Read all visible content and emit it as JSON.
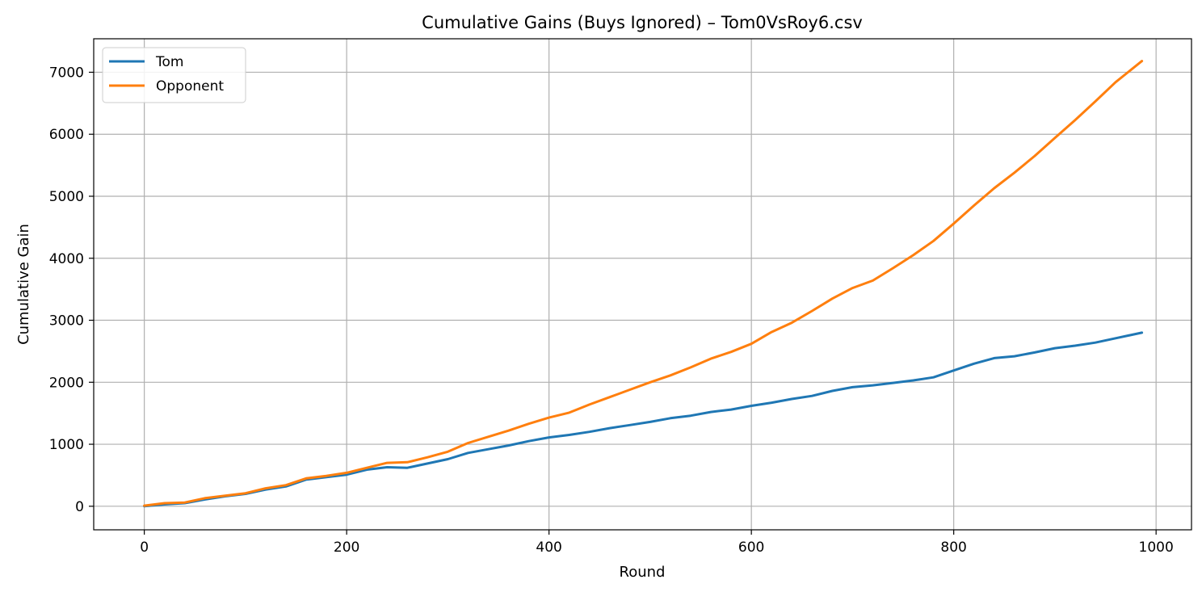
{
  "chart_data": {
    "type": "line",
    "title": "Cumulative Gains (Buys Ignored) – Tom0VsRoy6.csv",
    "xlabel": "Round",
    "ylabel": "Cumulative Gain",
    "xlim": [
      -50,
      1035
    ],
    "ylim": [
      -380,
      7540
    ],
    "xticks": [
      0,
      200,
      400,
      600,
      800,
      1000
    ],
    "yticks": [
      0,
      1000,
      2000,
      3000,
      4000,
      5000,
      6000,
      7000
    ],
    "grid": true,
    "legend": {
      "position": "top-left",
      "entries": [
        "Tom",
        "Opponent"
      ]
    },
    "series": [
      {
        "name": "Tom",
        "color": "#1f77b4",
        "x": [
          0,
          20,
          40,
          60,
          80,
          100,
          120,
          140,
          160,
          180,
          200,
          220,
          240,
          260,
          280,
          300,
          320,
          340,
          360,
          380,
          400,
          420,
          440,
          460,
          480,
          500,
          520,
          540,
          560,
          580,
          600,
          620,
          640,
          660,
          680,
          700,
          720,
          740,
          760,
          780,
          800,
          820,
          840,
          860,
          880,
          900,
          920,
          940,
          960,
          986
        ],
        "y": [
          0,
          30,
          50,
          110,
          160,
          200,
          270,
          320,
          430,
          470,
          510,
          590,
          630,
          620,
          690,
          760,
          860,
          920,
          980,
          1050,
          1110,
          1150,
          1200,
          1260,
          1310,
          1360,
          1420,
          1460,
          1520,
          1560,
          1620,
          1670,
          1730,
          1780,
          1860,
          1920,
          1950,
          1990,
          2030,
          2080,
          2190,
          2300,
          2390,
          2420,
          2480,
          2550,
          2590,
          2640,
          2710,
          2800
        ]
      },
      {
        "name": "Opponent",
        "color": "#ff7f0e",
        "x": [
          0,
          20,
          40,
          60,
          80,
          100,
          120,
          140,
          160,
          180,
          200,
          220,
          240,
          260,
          280,
          300,
          320,
          340,
          360,
          380,
          400,
          420,
          440,
          460,
          480,
          500,
          520,
          540,
          560,
          580,
          600,
          620,
          640,
          660,
          680,
          700,
          720,
          740,
          760,
          780,
          800,
          820,
          840,
          860,
          880,
          900,
          920,
          940,
          960,
          986
        ],
        "y": [
          10,
          50,
          60,
          130,
          170,
          210,
          290,
          340,
          450,
          490,
          540,
          620,
          700,
          710,
          790,
          880,
          1020,
          1120,
          1220,
          1330,
          1430,
          1510,
          1640,
          1760,
          1880,
          2000,
          2110,
          2240,
          2380,
          2490,
          2620,
          2810,
          2960,
          3150,
          3350,
          3520,
          3640,
          3840,
          4050,
          4280,
          4560,
          4850,
          5130,
          5380,
          5650,
          5940,
          6230,
          6530,
          6840,
          7180
        ]
      }
    ]
  }
}
